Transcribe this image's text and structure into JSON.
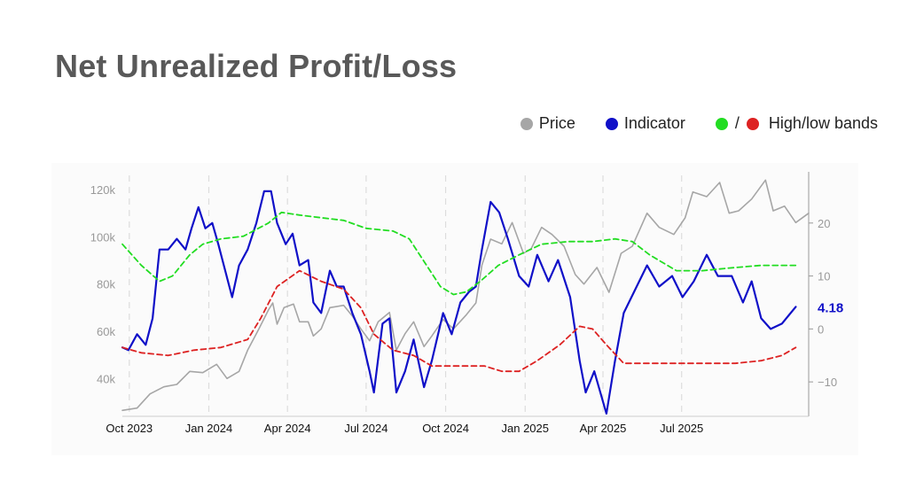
{
  "title": "Net Unrealized Profit/Loss",
  "legend": {
    "price_label": "Price",
    "indicator_label": "Indicator",
    "bands_label": "High/low bands",
    "bands_separator": "/"
  },
  "colors": {
    "title": "#595959",
    "price": "#a6a6a6",
    "indicator": "#1010c8",
    "high_band": "#22dd22",
    "low_band": "#dd2222",
    "grid": "#dddddd"
  },
  "chart_data": {
    "type": "line",
    "title": "Net Unrealized Profit/Loss",
    "x_range": [
      "2023-09-23",
      "2025-11-25"
    ],
    "x_ticks": [
      {
        "label": "Oct 2023",
        "date": "2023-10-01"
      },
      {
        "label": "Jan 2024",
        "date": "2024-01-01"
      },
      {
        "label": "Apr 2024",
        "date": "2024-04-01"
      },
      {
        "label": "Jul 2024",
        "date": "2024-07-01"
      },
      {
        "label": "Oct 2024",
        "date": "2024-10-01"
      },
      {
        "label": "Jan 2025",
        "date": "2025-01-01"
      },
      {
        "label": "Apr 2025",
        "date": "2025-04-01"
      },
      {
        "label": "Jul 2025",
        "date": "2025-07-01"
      }
    ],
    "y_left": {
      "ticks": [
        "40k",
        "60k",
        "80k",
        "100k",
        "120k"
      ],
      "tick_values": [
        40000,
        60000,
        80000,
        100000,
        120000
      ],
      "range": [
        24000,
        126000
      ]
    },
    "y_right": {
      "ticks": [
        "−10",
        "0",
        "10",
        "20"
      ],
      "tick_values": [
        -10,
        0,
        10,
        20
      ],
      "range": [
        -16.5,
        29
      ]
    },
    "grid": {
      "vertical_dashed": true,
      "horizontal": false
    },
    "last_value_label": "4.18",
    "series": [
      {
        "name": "Price",
        "axis": "left",
        "points": [
          [
            "2023-09-23",
            26500
          ],
          [
            "2023-10-10",
            27500
          ],
          [
            "2023-10-25",
            33500
          ],
          [
            "2023-11-10",
            36500
          ],
          [
            "2023-11-25",
            37500
          ],
          [
            "2023-12-10",
            43000
          ],
          [
            "2023-12-25",
            42500
          ],
          [
            "2024-01-10",
            46000
          ],
          [
            "2024-01-22",
            40000
          ],
          [
            "2024-02-05",
            43000
          ],
          [
            "2024-02-15",
            52000
          ],
          [
            "2024-02-28",
            61000
          ],
          [
            "2024-03-10",
            69000
          ],
          [
            "2024-03-15",
            72000
          ],
          [
            "2024-03-20",
            63000
          ],
          [
            "2024-03-28",
            70000
          ],
          [
            "2024-04-08",
            71500
          ],
          [
            "2024-04-15",
            64000
          ],
          [
            "2024-04-25",
            64000
          ],
          [
            "2024-05-01",
            58000
          ],
          [
            "2024-05-10",
            61000
          ],
          [
            "2024-05-20",
            70000
          ],
          [
            "2024-06-05",
            71000
          ],
          [
            "2024-06-15",
            66500
          ],
          [
            "2024-06-25",
            61000
          ],
          [
            "2024-07-05",
            56000
          ],
          [
            "2024-07-15",
            64000
          ],
          [
            "2024-07-28",
            68000
          ],
          [
            "2024-08-05",
            52000
          ],
          [
            "2024-08-15",
            59000
          ],
          [
            "2024-08-25",
            64000
          ],
          [
            "2024-09-06",
            53500
          ],
          [
            "2024-09-15",
            58000
          ],
          [
            "2024-09-28",
            65000
          ],
          [
            "2024-10-10",
            61000
          ],
          [
            "2024-10-25",
            67000
          ],
          [
            "2024-11-05",
            72000
          ],
          [
            "2024-11-12",
            88000
          ],
          [
            "2024-11-22",
            99000
          ],
          [
            "2024-12-05",
            97000
          ],
          [
            "2024-12-17",
            106000
          ],
          [
            "2024-12-30",
            93000
          ],
          [
            "2025-01-08",
            95000
          ],
          [
            "2025-01-20",
            104000
          ],
          [
            "2025-02-01",
            101000
          ],
          [
            "2025-02-15",
            96000
          ],
          [
            "2025-02-28",
            84000
          ],
          [
            "2025-03-10",
            80000
          ],
          [
            "2025-03-25",
            87000
          ],
          [
            "2025-04-08",
            76500
          ],
          [
            "2025-04-22",
            93000
          ],
          [
            "2025-05-05",
            96000
          ],
          [
            "2025-05-22",
            110000
          ],
          [
            "2025-06-05",
            104000
          ],
          [
            "2025-06-22",
            101000
          ],
          [
            "2025-07-05",
            108000
          ],
          [
            "2025-07-14",
            119000
          ],
          [
            "2025-07-30",
            117000
          ],
          [
            "2025-08-14",
            123000
          ],
          [
            "2025-08-25",
            110000
          ],
          [
            "2025-09-05",
            111000
          ],
          [
            "2025-09-20",
            116000
          ],
          [
            "2025-10-06",
            124000
          ],
          [
            "2025-10-15",
            111000
          ],
          [
            "2025-10-28",
            113000
          ],
          [
            "2025-11-10",
            106000
          ],
          [
            "2025-11-25",
            110000
          ]
        ]
      },
      {
        "name": "Indicator",
        "axis": "right",
        "points": [
          [
            "2023-09-23",
            -3.5
          ],
          [
            "2023-09-30",
            -4
          ],
          [
            "2023-10-10",
            -1
          ],
          [
            "2023-10-20",
            -3
          ],
          [
            "2023-10-28",
            2
          ],
          [
            "2023-11-05",
            15
          ],
          [
            "2023-11-15",
            15
          ],
          [
            "2023-11-25",
            17
          ],
          [
            "2023-12-05",
            15
          ],
          [
            "2023-12-12",
            19
          ],
          [
            "2023-12-20",
            23
          ],
          [
            "2023-12-28",
            19
          ],
          [
            "2024-01-05",
            20
          ],
          [
            "2024-01-12",
            16
          ],
          [
            "2024-01-20",
            11
          ],
          [
            "2024-01-28",
            6
          ],
          [
            "2024-02-05",
            12
          ],
          [
            "2024-02-15",
            15
          ],
          [
            "2024-02-25",
            20
          ],
          [
            "2024-03-05",
            26
          ],
          [
            "2024-03-13",
            26
          ],
          [
            "2024-03-20",
            20
          ],
          [
            "2024-03-30",
            16
          ],
          [
            "2024-04-07",
            18
          ],
          [
            "2024-04-15",
            12
          ],
          [
            "2024-04-25",
            13
          ],
          [
            "2024-05-01",
            5
          ],
          [
            "2024-05-10",
            3
          ],
          [
            "2024-05-20",
            11
          ],
          [
            "2024-05-28",
            8
          ],
          [
            "2024-06-05",
            8
          ],
          [
            "2024-06-15",
            3
          ],
          [
            "2024-06-25",
            -1
          ],
          [
            "2024-07-05",
            -8
          ],
          [
            "2024-07-10",
            -12
          ],
          [
            "2024-07-20",
            1
          ],
          [
            "2024-07-28",
            2
          ],
          [
            "2024-08-05",
            -12
          ],
          [
            "2024-08-15",
            -8
          ],
          [
            "2024-08-25",
            -2
          ],
          [
            "2024-09-06",
            -11
          ],
          [
            "2024-09-15",
            -6
          ],
          [
            "2024-09-28",
            3
          ],
          [
            "2024-10-08",
            -1
          ],
          [
            "2024-10-18",
            5
          ],
          [
            "2024-10-28",
            7
          ],
          [
            "2024-11-05",
            8
          ],
          [
            "2024-11-12",
            15
          ],
          [
            "2024-11-22",
            24
          ],
          [
            "2024-12-02",
            22
          ],
          [
            "2024-12-12",
            17
          ],
          [
            "2024-12-25",
            10
          ],
          [
            "2025-01-05",
            8
          ],
          [
            "2025-01-15",
            14
          ],
          [
            "2025-01-28",
            9
          ],
          [
            "2025-02-08",
            13
          ],
          [
            "2025-02-22",
            6
          ],
          [
            "2025-03-05",
            -6
          ],
          [
            "2025-03-12",
            -12
          ],
          [
            "2025-03-22",
            -8
          ],
          [
            "2025-04-05",
            -16
          ],
          [
            "2025-04-15",
            -6
          ],
          [
            "2025-04-25",
            3
          ],
          [
            "2025-05-10",
            8
          ],
          [
            "2025-05-22",
            12
          ],
          [
            "2025-06-05",
            8
          ],
          [
            "2025-06-20",
            10
          ],
          [
            "2025-07-02",
            6
          ],
          [
            "2025-07-15",
            9
          ],
          [
            "2025-07-30",
            14
          ],
          [
            "2025-08-12",
            10
          ],
          [
            "2025-08-28",
            10
          ],
          [
            "2025-09-10",
            5
          ],
          [
            "2025-09-20",
            9
          ],
          [
            "2025-10-01",
            2
          ],
          [
            "2025-10-12",
            0
          ],
          [
            "2025-10-25",
            1
          ],
          [
            "2025-11-10",
            4.18
          ]
        ]
      },
      {
        "name": "High",
        "axis": "right",
        "points": [
          [
            "2023-09-23",
            16
          ],
          [
            "2023-10-15",
            12
          ],
          [
            "2023-11-05",
            9
          ],
          [
            "2023-11-20",
            10
          ],
          [
            "2023-12-10",
            14
          ],
          [
            "2023-12-25",
            16
          ],
          [
            "2024-01-15",
            17
          ],
          [
            "2024-02-10",
            17.5
          ],
          [
            "2024-03-10",
            20
          ],
          [
            "2024-03-25",
            22
          ],
          [
            "2024-04-15",
            21.5
          ],
          [
            "2024-05-10",
            21
          ],
          [
            "2024-06-05",
            20.5
          ],
          [
            "2024-07-01",
            19
          ],
          [
            "2024-08-01",
            18.5
          ],
          [
            "2024-08-20",
            17
          ],
          [
            "2024-09-05",
            13
          ],
          [
            "2024-09-25",
            8
          ],
          [
            "2024-10-10",
            6.5
          ],
          [
            "2024-10-25",
            7
          ],
          [
            "2024-11-10",
            9
          ],
          [
            "2024-12-01",
            12
          ],
          [
            "2024-12-25",
            14
          ],
          [
            "2025-01-20",
            16
          ],
          [
            "2025-02-20",
            16.5
          ],
          [
            "2025-03-20",
            16.5
          ],
          [
            "2025-04-15",
            17
          ],
          [
            "2025-05-05",
            16.5
          ],
          [
            "2025-05-25",
            14
          ],
          [
            "2025-06-25",
            11
          ],
          [
            "2025-07-25",
            11
          ],
          [
            "2025-08-25",
            11.5
          ],
          [
            "2025-10-01",
            12
          ],
          [
            "2025-11-10",
            12
          ]
        ]
      },
      {
        "name": "Low",
        "axis": "right",
        "points": [
          [
            "2023-09-23",
            -3.5
          ],
          [
            "2023-10-15",
            -4.5
          ],
          [
            "2023-11-15",
            -5
          ],
          [
            "2023-12-15",
            -4
          ],
          [
            "2024-01-15",
            -3.5
          ],
          [
            "2024-02-15",
            -2
          ],
          [
            "2024-03-01",
            2
          ],
          [
            "2024-03-20",
            8
          ],
          [
            "2024-04-15",
            11
          ],
          [
            "2024-05-10",
            9
          ],
          [
            "2024-06-05",
            7.5
          ],
          [
            "2024-06-25",
            4
          ],
          [
            "2024-07-10",
            -1
          ],
          [
            "2024-08-01",
            -4
          ],
          [
            "2024-08-25",
            -5
          ],
          [
            "2024-09-15",
            -7
          ],
          [
            "2024-10-15",
            -7
          ],
          [
            "2024-11-15",
            -7
          ],
          [
            "2024-12-05",
            -8
          ],
          [
            "2024-12-25",
            -8
          ],
          [
            "2025-01-15",
            -6
          ],
          [
            "2025-02-10",
            -3
          ],
          [
            "2025-03-05",
            0.5
          ],
          [
            "2025-03-20",
            0
          ],
          [
            "2025-04-05",
            -3
          ],
          [
            "2025-04-25",
            -6.5
          ],
          [
            "2025-05-25",
            -6.5
          ],
          [
            "2025-06-25",
            -6.5
          ],
          [
            "2025-08-01",
            -6.5
          ],
          [
            "2025-09-01",
            -6.5
          ],
          [
            "2025-10-01",
            -6
          ],
          [
            "2025-10-25",
            -5
          ],
          [
            "2025-11-10",
            -3.5
          ]
        ]
      }
    ]
  }
}
